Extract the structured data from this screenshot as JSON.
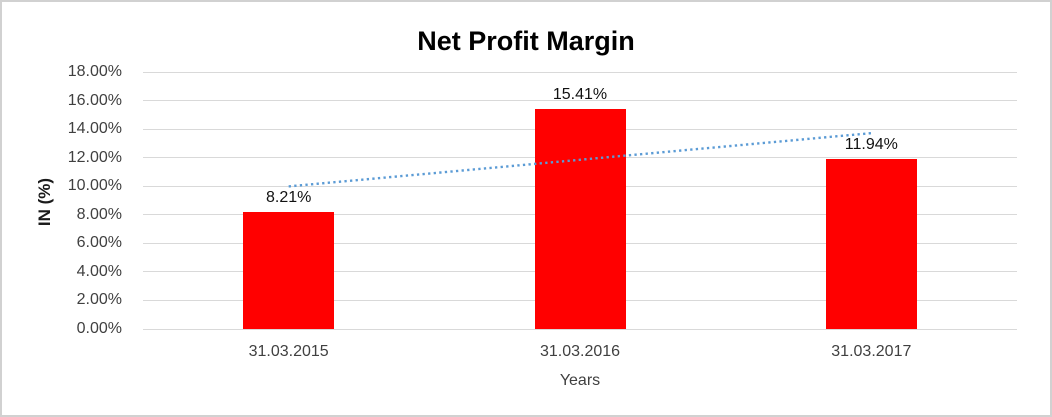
{
  "chart_data": {
    "type": "bar",
    "title": "Net Profit Margin",
    "xlabel": "Years",
    "ylabel": "IN (%)",
    "categories": [
      "31.03.2015",
      "31.03.2016",
      "31.03.2017"
    ],
    "values": [
      8.21,
      15.41,
      11.94
    ],
    "data_labels": [
      "8.21%",
      "15.41%",
      "11.94%"
    ],
    "ylim": [
      0,
      18
    ],
    "ytick_step": 2,
    "ytick_labels": [
      "0.00%",
      "2.00%",
      "4.00%",
      "6.00%",
      "8.00%",
      "10.00%",
      "12.00%",
      "14.00%",
      "16.00%",
      "18.00%"
    ],
    "grid": true,
    "legend": "none",
    "bar_color": "#ff0000",
    "trendline": {
      "type": "linear",
      "style": "dotted",
      "color": "#5b9bd5",
      "value_at_first_category": 9.99,
      "value_at_last_category": 13.72
    }
  },
  "colors": {
    "gridline": "#d9d9d9",
    "axis_text": "#404040",
    "title_text": "#000000",
    "frame_border": "#d1d1d1",
    "background": "#ffffff"
  }
}
